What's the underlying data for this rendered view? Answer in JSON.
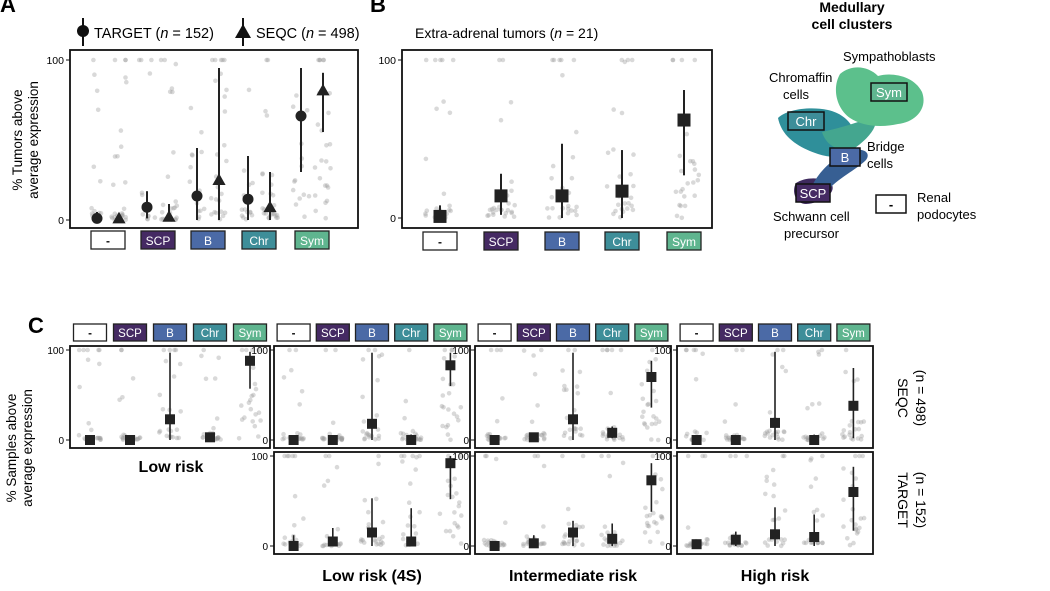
{
  "colors": {
    "neg": "#ffffff",
    "SCP": "#452a63",
    "B": "#4b6aa6",
    "Chr": "#3e8e99",
    "Sym": "#5fb58f",
    "mark": "#222222",
    "dot": "#9a9a9a",
    "umap_scp": "#3e2a5e",
    "umap_b": "#3b6b9c",
    "umap_chr": "#2f8f9a",
    "umap_sym": "#5cc08c"
  },
  "categories": [
    "-",
    "SCP",
    "B",
    "Chr",
    "Sym"
  ],
  "panels": {
    "A": "A",
    "B": "B",
    "C": "C"
  },
  "panel_a": {
    "legend": [
      {
        "marker": "circle",
        "name": "TARGET",
        "pre": "TARGET (",
        "n": "n",
        "post": " = 152)"
      },
      {
        "marker": "triangle",
        "name": "SEQC",
        "pre": "SEQC (",
        "n": "n",
        "post": " = 498)"
      }
    ],
    "ylabel_lines": [
      "% Tumors above",
      "average expression"
    ]
  },
  "panel_b": {
    "title_pre": "Extra-adrenal tumors (",
    "title_n": "n",
    "title_post": " = 21)"
  },
  "umap": {
    "title_lines": [
      "Medullary",
      "cell clusters"
    ],
    "labels": {
      "sympathoblasts": "Sympathoblasts",
      "chromaffin": [
        "Chromaffin",
        "cells"
      ],
      "bridge": [
        "Bridge",
        "cells"
      ],
      "schwann": [
        "Schwann cell",
        "precursor"
      ],
      "renal": [
        "Renal",
        "podocytes"
      ]
    },
    "boxes": {
      "sym": "Sym",
      "chr": "Chr",
      "b": "B",
      "scp": "SCP",
      "neg": "-"
    }
  },
  "panel_c": {
    "ylabel_lines": [
      "% Samples above",
      "average expression"
    ],
    "rows": [
      {
        "label_lines": [
          "SEQC",
          "(n = 498)"
        ]
      },
      {
        "label_lines": [
          "TARGET",
          "(n = 152)"
        ]
      }
    ],
    "risk_labels": [
      "Low risk",
      "Low risk (4S)",
      "Intermediate risk",
      "High risk"
    ]
  },
  "chart_data": [
    {
      "panel": "A",
      "type": "scatter",
      "categories": [
        "-",
        "SCP",
        "B",
        "Chr",
        "Sym"
      ],
      "ylim": [
        0,
        100
      ],
      "yticks": [
        0,
        100
      ],
      "series": [
        {
          "name": "TARGET",
          "median": [
            1,
            8,
            15,
            13,
            65
          ],
          "low": [
            0,
            1,
            0,
            0,
            30
          ],
          "high": [
            5,
            18,
            45,
            40,
            95
          ]
        },
        {
          "name": "SEQC",
          "median": [
            1,
            2,
            25,
            8,
            81
          ],
          "low": [
            0,
            0,
            0,
            0,
            55
          ],
          "high": [
            3,
            10,
            95,
            30,
            92
          ]
        }
      ]
    },
    {
      "panel": "B",
      "type": "scatter",
      "categories": [
        "-",
        "SCP",
        "B",
        "Chr",
        "Sym"
      ],
      "ylim": [
        0,
        100
      ],
      "yticks": [
        0,
        100
      ],
      "median": [
        1,
        14,
        14,
        17,
        62
      ],
      "low": [
        0,
        2,
        0,
        0,
        27
      ],
      "high": [
        8,
        28,
        47,
        43,
        81
      ]
    },
    {
      "panel": "C",
      "type": "scatter",
      "categories": [
        "-",
        "SCP",
        "B",
        "Chr",
        "Sym"
      ],
      "ylim": [
        0,
        100
      ],
      "yticks": [
        0,
        100
      ],
      "cells": [
        {
          "row": "SEQC",
          "risk": "Low risk",
          "median": [
            0,
            0,
            23,
            3,
            88
          ],
          "low": [
            0,
            0,
            0,
            0,
            57
          ],
          "high": [
            3,
            3,
            97,
            8,
            98
          ]
        },
        {
          "row": "SEQC",
          "risk": "Low risk (4S)",
          "median": [
            0,
            0,
            18,
            0,
            83
          ],
          "low": [
            0,
            0,
            0,
            0,
            60
          ],
          "high": [
            2,
            2,
            97,
            6,
            97
          ]
        },
        {
          "row": "SEQC",
          "risk": "Intermediate risk",
          "median": [
            0,
            3,
            23,
            8,
            70
          ],
          "low": [
            0,
            0,
            0,
            2,
            36
          ],
          "high": [
            2,
            8,
            97,
            15,
            88
          ]
        },
        {
          "row": "SEQC",
          "risk": "High risk",
          "median": [
            0,
            0,
            19,
            0,
            38
          ],
          "low": [
            0,
            0,
            0,
            0,
            2
          ],
          "high": [
            3,
            3,
            98,
            6,
            80
          ]
        },
        {
          "row": "TARGET",
          "risk": "Low risk (4S)",
          "median": [
            0,
            5,
            15,
            5,
            92
          ],
          "low": [
            0,
            0,
            0,
            0,
            52
          ],
          "high": [
            12,
            20,
            53,
            42,
            100
          ]
        },
        {
          "row": "TARGET",
          "risk": "Intermediate risk",
          "median": [
            0,
            3,
            15,
            8,
            73
          ],
          "low": [
            0,
            0,
            0,
            0,
            38
          ],
          "high": [
            2,
            12,
            28,
            25,
            92
          ]
        },
        {
          "row": "TARGET",
          "risk": "High risk",
          "median": [
            2,
            7,
            13,
            10,
            60
          ],
          "low": [
            0,
            0,
            0,
            0,
            17
          ],
          "high": [
            6,
            16,
            43,
            35,
            88
          ]
        }
      ]
    }
  ]
}
